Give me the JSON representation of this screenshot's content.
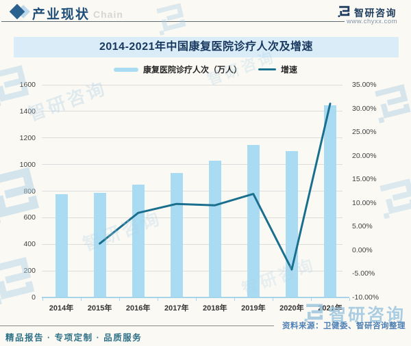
{
  "header": {
    "section_label": "产业现状",
    "section_ghost": "Chain",
    "brand_name": "智研咨询",
    "brand_url": "www.chyxx.com"
  },
  "banner": {
    "title": "2014-2021年中国康复医院诊疗人次及增速"
  },
  "legend": {
    "bar_label": "康复医院诊疗人次（万人）",
    "line_label": "增速"
  },
  "chart_data": {
    "type": "bar",
    "subtype": "bar+line combo, dual axis",
    "title": "2014-2021年中国康复医院诊疗人次及增速",
    "categories": [
      "2014年",
      "2015年",
      "2016年",
      "2017年",
      "2018年",
      "2019年",
      "2020年",
      "2021年"
    ],
    "series": [
      {
        "name": "康复医院诊疗人次（万人）",
        "type": "bar",
        "axis": "left",
        "color": "#a9dcf3",
        "values": [
          778,
          789,
          850,
          936,
          1030,
          1149,
          1102,
          1447
        ]
      },
      {
        "name": "增速",
        "type": "line",
        "axis": "right",
        "color": "#1b6f8e",
        "unit": "%",
        "values": [
          null,
          1.4,
          7.9,
          9.8,
          9.5,
          11.9,
          -4.1,
          31.0
        ]
      }
    ],
    "left_axis": {
      "min": 0,
      "max": 1600,
      "step": 200,
      "tick_labels": [
        "0",
        "200",
        "400",
        "600",
        "800",
        "1000",
        "1200",
        "1400",
        "1600"
      ]
    },
    "right_axis": {
      "min": -10,
      "max": 35,
      "step": 5,
      "tick_labels": [
        "-10.00%",
        "-5.00%",
        "0.00%",
        "5.00%",
        "10.00%",
        "15.00%",
        "20.00%",
        "25.00%",
        "30.00%",
        "35.00%"
      ]
    },
    "grid": true,
    "legend_position": "top"
  },
  "footer": {
    "source": "资料来源：卫健委、智研咨询整理",
    "tagline": "精品报告 · 专项定制 · 品质服务",
    "watermark_brand": "智研咨询"
  },
  "colors": {
    "page_bg": "#fbf9f4",
    "banner_bg": "#d9ecf7",
    "banner_text": "#17375e",
    "header_text": "#1f4e79",
    "bar": "#a9dcf3",
    "line": "#1b6f8e",
    "gridline": "#dcdcdc",
    "axis_line": "#a5d3e9",
    "axis_text": "#404040",
    "source_text": "#4d7fb5",
    "tagline_text": "#2e7187",
    "watermark": "#aacfe4"
  }
}
